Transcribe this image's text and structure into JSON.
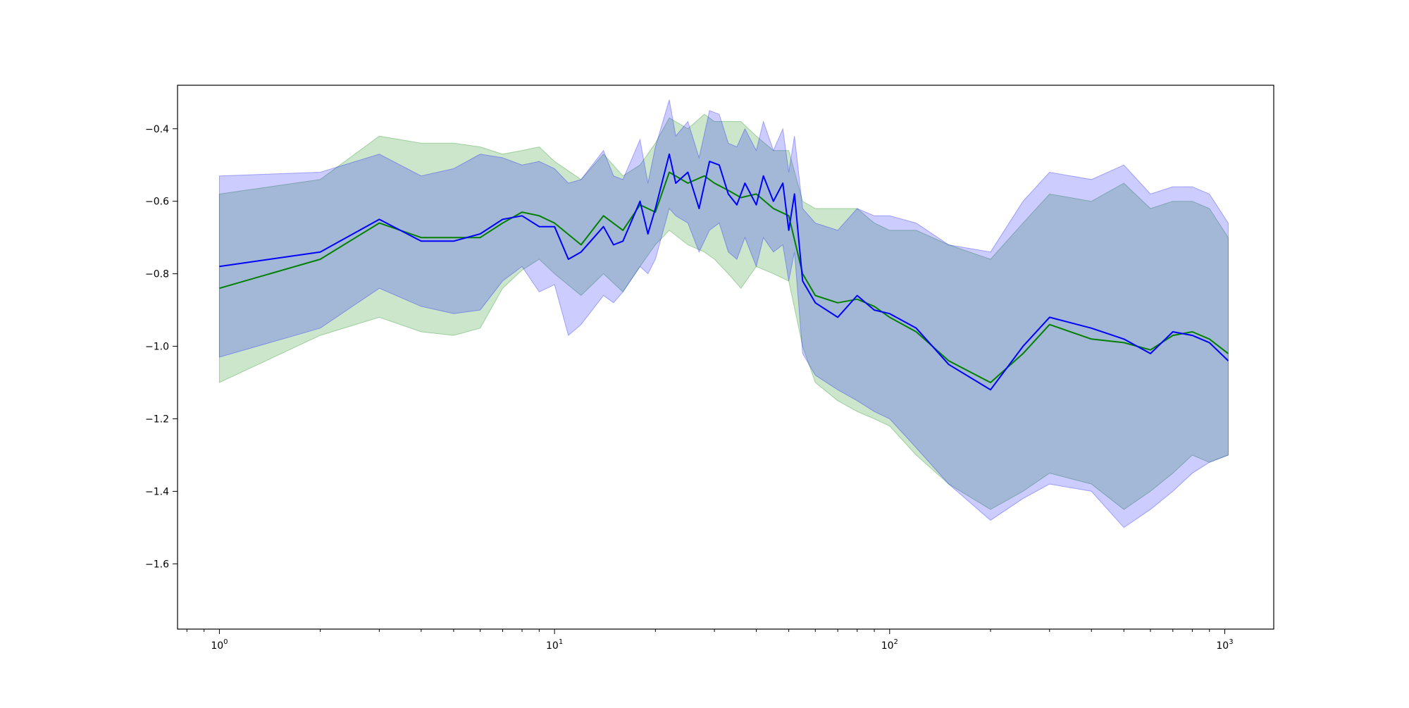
{
  "chart_data": {
    "type": "line",
    "title": "",
    "xlabel": "",
    "ylabel": "",
    "xscale": "log",
    "xlim": [
      0.75,
      1400
    ],
    "ylim": [
      -1.78,
      -0.28
    ],
    "grid": false,
    "legend": "none",
    "x_ticks": [
      {
        "value": 1,
        "base": "10",
        "exp": "0"
      },
      {
        "value": 10,
        "base": "10",
        "exp": "1"
      },
      {
        "value": 100,
        "base": "10",
        "exp": "2"
      },
      {
        "value": 1000,
        "base": "10",
        "exp": "3"
      }
    ],
    "y_ticks": [
      {
        "value": -0.4,
        "label": "−0.4"
      },
      {
        "value": -0.6,
        "label": "−0.6"
      },
      {
        "value": -0.8,
        "label": "−0.8"
      },
      {
        "value": -1.0,
        "label": "−1.0"
      },
      {
        "value": -1.2,
        "label": "−1.2"
      },
      {
        "value": -1.4,
        "label": "−1.4"
      },
      {
        "value": -1.6,
        "label": "−1.6"
      }
    ],
    "series": [
      {
        "color": "#008000",
        "band_color": "#008000",
        "band_opacity": 0.2,
        "x": [
          1,
          2,
          3,
          4,
          5,
          6,
          7,
          8,
          9,
          10,
          12,
          14,
          16,
          18,
          20,
          22,
          25,
          28,
          30,
          33,
          36,
          40,
          45,
          50,
          55,
          60,
          70,
          80,
          90,
          100,
          120,
          150,
          200,
          250,
          300,
          400,
          500,
          600,
          700,
          800,
          900,
          1024
        ],
        "mean": [
          -0.84,
          -0.76,
          -0.66,
          -0.7,
          -0.7,
          -0.7,
          -0.66,
          -0.63,
          -0.64,
          -0.66,
          -0.72,
          -0.64,
          -0.68,
          -0.61,
          -0.63,
          -0.52,
          -0.55,
          -0.53,
          -0.55,
          -0.57,
          -0.59,
          -0.58,
          -0.62,
          -0.64,
          -0.8,
          -0.86,
          -0.88,
          -0.87,
          -0.89,
          -0.92,
          -0.96,
          -1.04,
          -1.1,
          -1.02,
          -0.94,
          -0.98,
          -0.99,
          -1.01,
          -0.97,
          -0.96,
          -0.98,
          -1.02
        ],
        "lower": [
          -1.1,
          -0.97,
          -0.92,
          -0.96,
          -0.97,
          -0.95,
          -0.84,
          -0.79,
          -0.76,
          -0.8,
          -0.86,
          -0.8,
          -0.85,
          -0.78,
          -0.72,
          -0.68,
          -0.72,
          -0.74,
          -0.76,
          -0.8,
          -0.84,
          -0.78,
          -0.8,
          -0.82,
          -1.0,
          -1.1,
          -1.15,
          -1.18,
          -1.2,
          -1.22,
          -1.3,
          -1.38,
          -1.45,
          -1.4,
          -1.35,
          -1.38,
          -1.45,
          -1.4,
          -1.35,
          -1.3,
          -1.32,
          -1.3
        ],
        "upper": [
          -0.58,
          -0.54,
          -0.42,
          -0.44,
          -0.44,
          -0.45,
          -0.47,
          -0.46,
          -0.45,
          -0.49,
          -0.54,
          -0.47,
          -0.53,
          -0.5,
          -0.44,
          -0.37,
          -0.4,
          -0.36,
          -0.38,
          -0.38,
          -0.38,
          -0.42,
          -0.46,
          -0.46,
          -0.6,
          -0.62,
          -0.62,
          -0.62,
          -0.66,
          -0.68,
          -0.68,
          -0.72,
          -0.76,
          -0.66,
          -0.58,
          -0.6,
          -0.55,
          -0.62,
          -0.6,
          -0.6,
          -0.62,
          -0.7
        ]
      },
      {
        "color": "#0000ff",
        "band_color": "#0000ff",
        "band_opacity": 0.2,
        "x": [
          1,
          2,
          3,
          4,
          5,
          6,
          7,
          8,
          9,
          10,
          11,
          12,
          14,
          15,
          16,
          18,
          19,
          20,
          22,
          23,
          25,
          27,
          29,
          31,
          33,
          35,
          37,
          40,
          42,
          45,
          48,
          50,
          52,
          55,
          60,
          70,
          80,
          90,
          100,
          120,
          150,
          200,
          250,
          300,
          400,
          500,
          600,
          700,
          800,
          900,
          1024
        ],
        "mean": [
          -0.78,
          -0.74,
          -0.65,
          -0.71,
          -0.71,
          -0.69,
          -0.65,
          -0.64,
          -0.67,
          -0.67,
          -0.76,
          -0.74,
          -0.67,
          -0.72,
          -0.71,
          -0.6,
          -0.69,
          -0.62,
          -0.47,
          -0.55,
          -0.52,
          -0.62,
          -0.49,
          -0.5,
          -0.58,
          -0.61,
          -0.55,
          -0.61,
          -0.53,
          -0.6,
          -0.55,
          -0.68,
          -0.58,
          -0.82,
          -0.88,
          -0.92,
          -0.86,
          -0.9,
          -0.91,
          -0.95,
          -1.05,
          -1.12,
          -1.0,
          -0.92,
          -0.95,
          -0.98,
          -1.02,
          -0.96,
          -0.97,
          -0.99,
          -1.04
        ],
        "lower": [
          -1.03,
          -0.95,
          -0.84,
          -0.89,
          -0.91,
          -0.9,
          -0.82,
          -0.78,
          -0.85,
          -0.83,
          -0.97,
          -0.94,
          -0.86,
          -0.88,
          -0.85,
          -0.78,
          -0.8,
          -0.76,
          -0.62,
          -0.64,
          -0.66,
          -0.74,
          -0.68,
          -0.66,
          -0.74,
          -0.76,
          -0.7,
          -0.78,
          -0.7,
          -0.74,
          -0.72,
          -0.82,
          -0.74,
          -1.02,
          -1.08,
          -1.12,
          -1.15,
          -1.18,
          -1.2,
          -1.28,
          -1.38,
          -1.48,
          -1.42,
          -1.38,
          -1.4,
          -1.5,
          -1.45,
          -1.4,
          -1.35,
          -1.32,
          -1.3
        ],
        "upper": [
          -0.53,
          -0.52,
          -0.47,
          -0.53,
          -0.51,
          -0.47,
          -0.48,
          -0.5,
          -0.49,
          -0.51,
          -0.55,
          -0.54,
          -0.46,
          -0.53,
          -0.54,
          -0.43,
          -0.55,
          -0.45,
          -0.32,
          -0.42,
          -0.38,
          -0.48,
          -0.35,
          -0.36,
          -0.44,
          -0.45,
          -0.4,
          -0.46,
          -0.38,
          -0.46,
          -0.4,
          -0.52,
          -0.42,
          -0.62,
          -0.66,
          -0.68,
          -0.62,
          -0.64,
          -0.64,
          -0.66,
          -0.72,
          -0.74,
          -0.6,
          -0.52,
          -0.54,
          -0.5,
          -0.58,
          -0.56,
          -0.56,
          -0.58,
          -0.66
        ]
      }
    ]
  }
}
